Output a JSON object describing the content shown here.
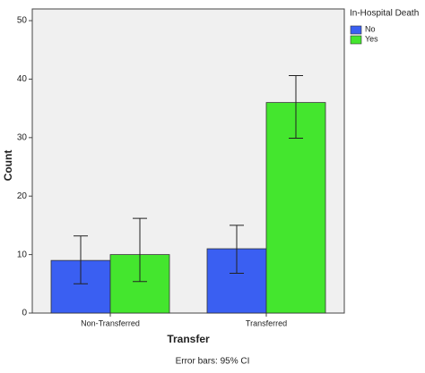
{
  "chart_data": {
    "type": "bar",
    "categories": [
      "Non-Transferred",
      "Transferred"
    ],
    "series": [
      {
        "name": "No",
        "color": "#3a5ff2",
        "values": [
          9,
          11
        ],
        "error_low": [
          5,
          6.8
        ],
        "error_high": [
          13.2,
          15
        ]
      },
      {
        "name": "Yes",
        "color": "#44e62e",
        "values": [
          10,
          36
        ],
        "error_low": [
          5.4,
          29.9
        ],
        "error_high": [
          16.2,
          40.6
        ]
      }
    ],
    "ylim": [
      0,
      52
    ],
    "yticks": [
      0,
      10,
      20,
      30,
      40,
      50
    ],
    "x_label": "Transfer",
    "y_label": "Count",
    "legend_title": "In-Hospital Death",
    "legend": "right",
    "footnote": "Error bars: 95% CI"
  }
}
